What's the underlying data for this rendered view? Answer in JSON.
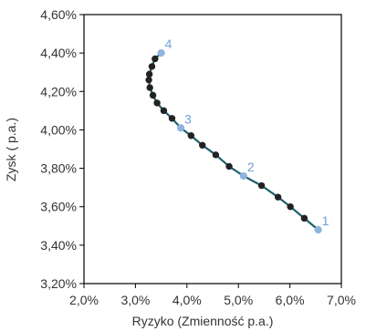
{
  "chart_data": {
    "type": "scatter",
    "title": "",
    "xlabel": "Ryzyko (Zmienność p.a.)",
    "ylabel": "Zysk ( p.a.)",
    "xlim": [
      0.02,
      0.07
    ],
    "ylim": [
      0.032,
      0.046
    ],
    "x_ticks": [
      0.02,
      0.03,
      0.04,
      0.05,
      0.06,
      0.07
    ],
    "x_tick_labels": [
      "2,0%",
      "3,0%",
      "4,0%",
      "5,0%",
      "6,0%",
      "7,0%"
    ],
    "y_ticks": [
      0.032,
      0.034,
      0.036,
      0.038,
      0.04,
      0.042,
      0.044,
      0.046
    ],
    "y_tick_labels": [
      "3,20%",
      "3,40%",
      "3,60%",
      "3,80%",
      "4,00%",
      "4,20%",
      "4,40%",
      "4,60%"
    ],
    "grid": false,
    "legend": "none",
    "colors": {
      "frontier_line": "#1f5f6e",
      "frontier_points": "#222222",
      "labeled_points": "#8fb4de",
      "labels": "#6f9fd8",
      "frame": "#000000"
    },
    "series": [
      {
        "points": [
          {
            "x": 0.0628,
            "y": 0.0354
          },
          {
            "x": 0.0601,
            "y": 0.036
          },
          {
            "x": 0.0577,
            "y": 0.0365
          },
          {
            "x": 0.0545,
            "y": 0.0371
          },
          {
            "x": 0.051,
            "y": 0.0376
          },
          {
            "x": 0.0482,
            "y": 0.0381
          },
          {
            "x": 0.0456,
            "y": 0.0387
          },
          {
            "x": 0.043,
            "y": 0.0392
          },
          {
            "x": 0.0408,
            "y": 0.0397
          },
          {
            "x": 0.0388,
            "y": 0.0401
          },
          {
            "x": 0.0371,
            "y": 0.0406
          },
          {
            "x": 0.0355,
            "y": 0.041
          },
          {
            "x": 0.0342,
            "y": 0.0414
          },
          {
            "x": 0.0334,
            "y": 0.0418
          },
          {
            "x": 0.0328,
            "y": 0.0422
          },
          {
            "x": 0.0326,
            "y": 0.0426
          },
          {
            "x": 0.0327,
            "y": 0.0429
          },
          {
            "x": 0.0332,
            "y": 0.0433
          },
          {
            "x": 0.0338,
            "y": 0.0437
          },
          {
            "x": 0.035,
            "y": 0.044
          }
        ]
      }
    ],
    "annotations": [
      {
        "label": "1",
        "x": 0.0655,
        "y": 0.0348
      },
      {
        "label": "2",
        "x": 0.051,
        "y": 0.0376
      },
      {
        "label": "3",
        "x": 0.0388,
        "y": 0.0401
      },
      {
        "label": "4",
        "x": 0.035,
        "y": 0.044
      }
    ]
  }
}
